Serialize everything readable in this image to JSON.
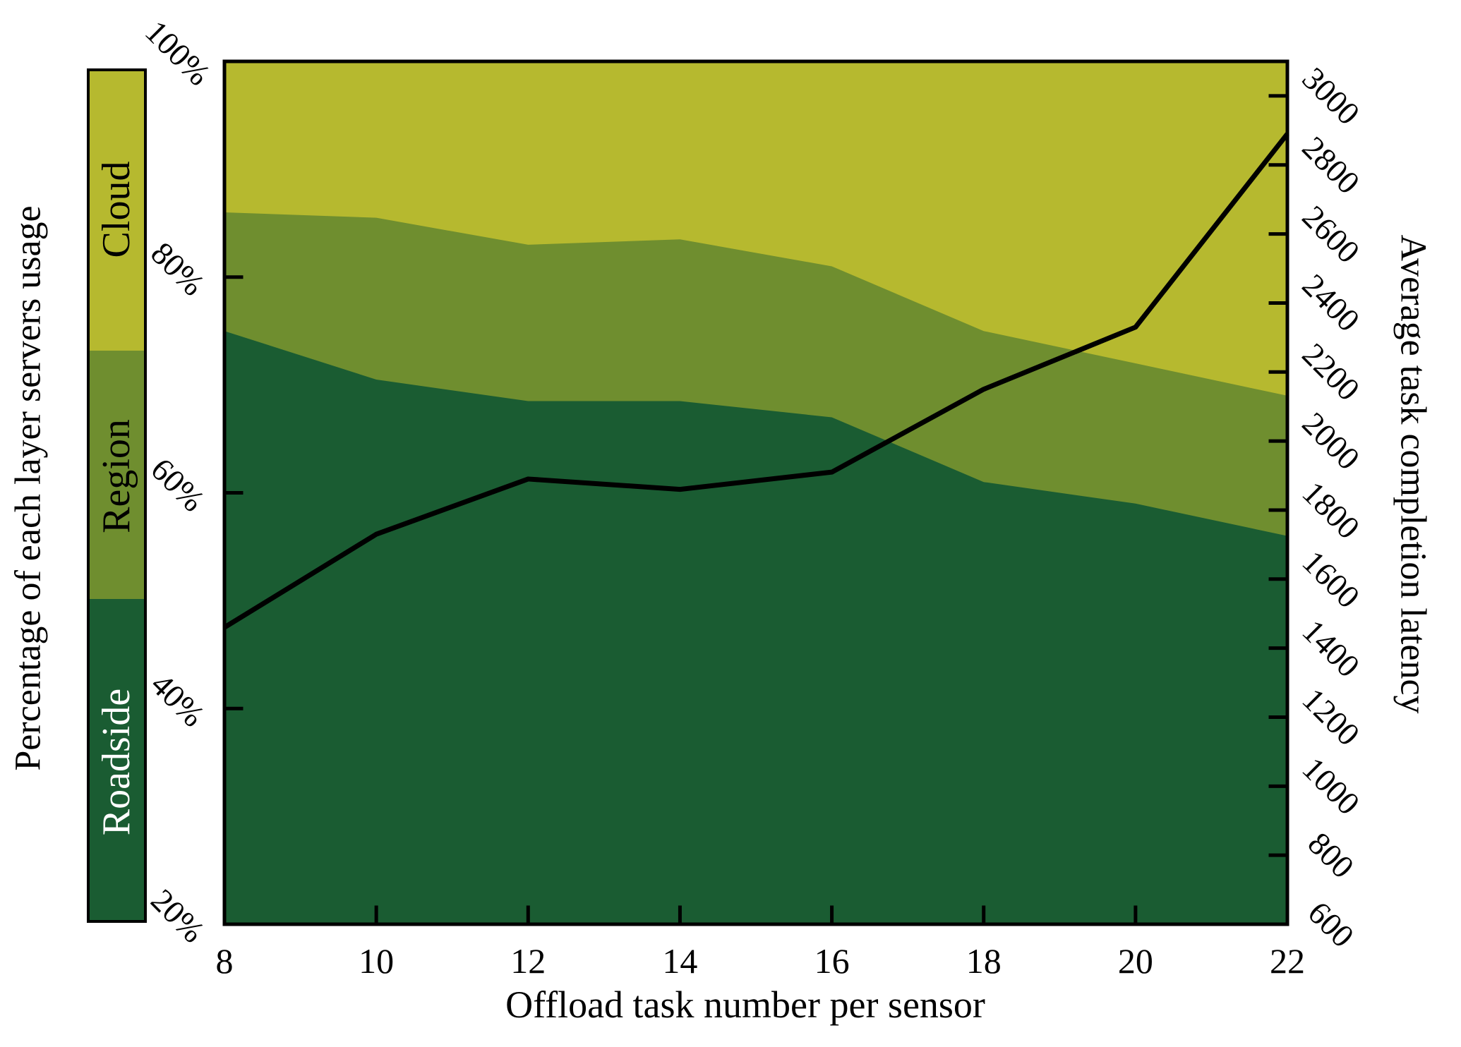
{
  "figure": {
    "x_axis": {
      "label": "Offload task number per sensor"
    },
    "y_left_axis": {
      "label": "Percentage of each layer servers usage"
    },
    "y_right_axis": {
      "label": "Average task completion latency"
    },
    "legend": {
      "position": "left-vertical-bar",
      "items": [
        {
          "label": "Cloud",
          "color": "#b6b92f",
          "text_color": "#000000"
        },
        {
          "label": "Region",
          "color": "#6f8e2f",
          "text_color": "#000000"
        },
        {
          "label": "Roadside",
          "color": "#1a5c32",
          "text_color": "#ffffff"
        }
      ]
    }
  },
  "chart_data": {
    "type": "area",
    "stacked": true,
    "grid": false,
    "x": [
      8,
      10,
      12,
      14,
      16,
      18,
      20,
      22
    ],
    "x_range": [
      8,
      22
    ],
    "x_tick_labels": [
      "8",
      "10",
      "12",
      "14",
      "16",
      "18",
      "20",
      "22"
    ],
    "xlabel": "Offload task number per sensor",
    "y_left_range": [
      20,
      100
    ],
    "y_left_tick_values": [
      20,
      40,
      60,
      80,
      100
    ],
    "y_left_tick_labels": [
      "20%",
      "40%",
      "60%",
      "80%",
      "100%"
    ],
    "y_left_label": "Percentage of each layer servers usage",
    "y_right_range": [
      600,
      3100
    ],
    "y_right_tick_values": [
      600,
      800,
      1000,
      1200,
      1400,
      1600,
      1800,
      2000,
      2200,
      2400,
      2600,
      2800,
      3000
    ],
    "y_right_label": "Average task completion latency",
    "series": [
      {
        "name": "Roadside",
        "color": "#1a5c32",
        "values": [
          75,
          70.5,
          68.5,
          68.5,
          67,
          61,
          59,
          56
        ]
      },
      {
        "name": "Region",
        "color": "#6f8e2f",
        "values": [
          11,
          15,
          14.5,
          15,
          14,
          14,
          13,
          13
        ]
      },
      {
        "name": "Cloud",
        "color": "#b6b92f",
        "values": [
          14,
          14.5,
          17,
          16.5,
          19,
          25,
          28,
          31
        ]
      }
    ],
    "cumulative_boundaries": {
      "roadside_top_percent": [
        75,
        70.5,
        68.5,
        68.5,
        67,
        61,
        59,
        56
      ],
      "region_top_percent": [
        86,
        85.5,
        83,
        83.5,
        81,
        75,
        72,
        69
      ],
      "cloud_top_percent": [
        100,
        100,
        100,
        100,
        100,
        100,
        100,
        100
      ]
    },
    "line_series": {
      "name": "Average task completion latency",
      "color": "#000000",
      "axis": "right",
      "values": [
        1460,
        1730,
        1890,
        1860,
        1910,
        2150,
        2330,
        2890
      ]
    }
  }
}
